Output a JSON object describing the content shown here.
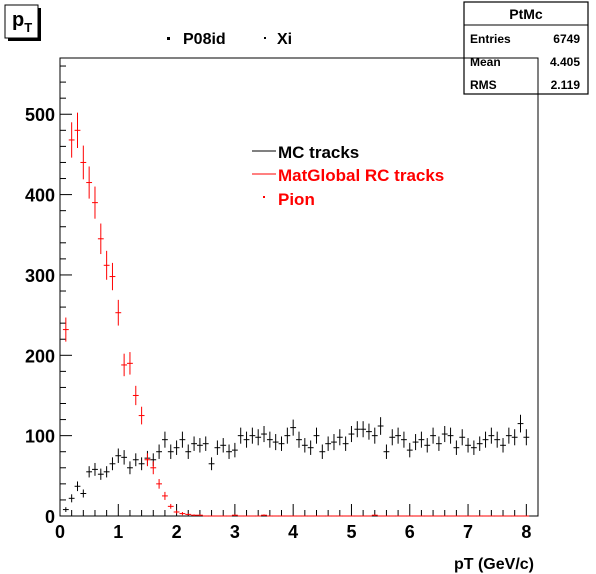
{
  "title_box": {
    "main": "p",
    "sub": "T"
  },
  "header": {
    "run": "P08id",
    "particle": "Xi"
  },
  "stats": {
    "title": "PtMc",
    "rows": [
      {
        "label": "Entries",
        "value": "6749"
      },
      {
        "label": "Mean",
        "value": "4.405"
      },
      {
        "label": "RMS",
        "value": "2.119"
      }
    ]
  },
  "legend": [
    {
      "label": "MC tracks",
      "color": "#000000",
      "marker": "line"
    },
    {
      "label": "MatGlobal RC tracks",
      "color": "#ff0000",
      "marker": "line"
    },
    {
      "label": "Pion",
      "color": "#ff0000",
      "marker": "dot"
    }
  ],
  "chart_data": {
    "type": "scatter",
    "xlabel": "pT (GeV/c)",
    "ylabel": "",
    "xlim": [
      0,
      8.2
    ],
    "ylim": [
      0,
      570
    ],
    "xticks": [
      0,
      1,
      2,
      3,
      4,
      5,
      6,
      7,
      8
    ],
    "yticks": [
      0,
      100,
      200,
      300,
      400,
      500
    ],
    "grid": false,
    "legend_position": "top-center",
    "series": [
      {
        "name": "MC tracks",
        "color": "#000000",
        "x": [
          0.1,
          0.2,
          0.3,
          0.4,
          0.5,
          0.6,
          0.7,
          0.8,
          0.9,
          1.0,
          1.1,
          1.2,
          1.3,
          1.4,
          1.5,
          1.6,
          1.7,
          1.8,
          1.9,
          2.0,
          2.1,
          2.2,
          2.3,
          2.4,
          2.5,
          2.6,
          2.7,
          2.8,
          2.9,
          3.0,
          3.1,
          3.2,
          3.3,
          3.4,
          3.5,
          3.6,
          3.7,
          3.8,
          3.9,
          4.0,
          4.1,
          4.2,
          4.3,
          4.4,
          4.5,
          4.6,
          4.7,
          4.8,
          4.9,
          5.0,
          5.1,
          5.2,
          5.3,
          5.4,
          5.5,
          5.6,
          5.7,
          5.8,
          5.9,
          6.0,
          6.1,
          6.2,
          6.3,
          6.4,
          6.5,
          6.6,
          6.7,
          6.8,
          6.9,
          7.0,
          7.1,
          7.2,
          7.3,
          7.4,
          7.5,
          7.6,
          7.7,
          7.8,
          7.9,
          8.0
        ],
        "y": [
          8,
          22,
          37,
          28,
          55,
          58,
          52,
          55,
          65,
          75,
          73,
          60,
          70,
          65,
          72,
          70,
          80,
          95,
          80,
          85,
          95,
          80,
          90,
          88,
          90,
          65,
          85,
          88,
          80,
          82,
          100,
          95,
          100,
          98,
          102,
          95,
          92,
          90,
          100,
          110,
          95,
          88,
          85,
          100,
          80,
          90,
          92,
          98,
          90,
          102,
          108,
          108,
          105,
          100,
          112,
          80,
          98,
          100,
          95,
          82,
          92,
          95,
          88,
          100,
          90,
          102,
          100,
          85,
          98,
          88,
          85,
          90,
          95,
          100,
          95,
          88,
          100,
          98,
          115,
          98
        ],
        "yerr": [
          3,
          5,
          6,
          5,
          7,
          8,
          7,
          7,
          8,
          9,
          9,
          8,
          8,
          8,
          9,
          8,
          9,
          10,
          9,
          9,
          10,
          9,
          9,
          9,
          9,
          8,
          9,
          9,
          9,
          9,
          10,
          10,
          10,
          10,
          10,
          10,
          10,
          9,
          10,
          10,
          10,
          9,
          9,
          10,
          9,
          9,
          10,
          10,
          9,
          10,
          10,
          10,
          10,
          10,
          11,
          9,
          10,
          10,
          10,
          9,
          10,
          10,
          9,
          10,
          9,
          10,
          10,
          9,
          10,
          9,
          9,
          9,
          10,
          10,
          10,
          9,
          10,
          10,
          11,
          10
        ]
      },
      {
        "name": "MatGlobal RC tracks",
        "color": "#ff0000",
        "x": [
          0.1,
          0.2,
          0.3,
          0.4,
          0.5,
          0.6,
          0.7,
          0.8,
          0.9,
          1.0,
          1.1,
          1.2,
          1.3,
          1.4,
          1.5,
          1.6,
          1.7,
          1.8,
          1.9,
          2.0,
          2.1,
          2.2,
          2.3,
          2.4,
          2.5,
          2.6,
          2.7,
          2.8,
          2.9,
          3.0,
          3.1,
          3.2,
          3.3,
          3.4,
          3.5,
          3.6,
          3.7,
          3.8,
          3.9,
          4.0,
          4.1,
          4.2,
          4.3,
          4.4,
          4.5,
          4.6,
          4.7,
          4.8,
          4.9,
          5.0,
          5.1,
          5.2,
          5.3,
          5.4,
          5.5,
          5.6,
          5.7,
          5.8,
          5.9,
          6.0,
          6.1,
          6.2,
          6.3,
          6.4,
          6.5,
          6.6,
          6.7,
          6.8,
          6.9,
          7.0,
          7.1,
          7.2,
          7.3,
          7.4,
          7.5,
          7.6,
          7.7,
          7.8,
          7.9,
          8.0
        ],
        "y": [
          232,
          468,
          480,
          440,
          415,
          390,
          345,
          312,
          298,
          253,
          188,
          190,
          150,
          125,
          70,
          60,
          40,
          25,
          12,
          5,
          3,
          2,
          1,
          1,
          0,
          0,
          0,
          0,
          0,
          1,
          0,
          0,
          0,
          0,
          1,
          0,
          0,
          0,
          0,
          0,
          0,
          0,
          0,
          0,
          0,
          0,
          0,
          0,
          0,
          0,
          0,
          0,
          0,
          1,
          0,
          0,
          0,
          0,
          0,
          0,
          0,
          0,
          0,
          0,
          0,
          0,
          0,
          0,
          0,
          0,
          0,
          0,
          0,
          0,
          0,
          0,
          0,
          0,
          0,
          0
        ],
        "yerr": [
          15,
          22,
          22,
          21,
          20,
          20,
          19,
          18,
          17,
          16,
          14,
          14,
          12,
          11,
          8,
          8,
          6,
          5,
          3,
          2,
          2,
          1,
          1,
          1,
          0,
          0,
          0,
          0,
          0,
          1,
          0,
          0,
          0,
          0,
          1,
          0,
          0,
          0,
          0,
          0,
          0,
          0,
          0,
          0,
          0,
          0,
          0,
          0,
          0,
          0,
          0,
          0,
          0,
          1,
          0,
          0,
          0,
          0,
          0,
          0,
          0,
          0,
          0,
          0,
          0,
          0,
          0,
          0,
          0,
          0,
          0,
          0,
          0,
          0,
          0,
          0,
          0,
          0,
          0,
          0
        ]
      }
    ]
  }
}
